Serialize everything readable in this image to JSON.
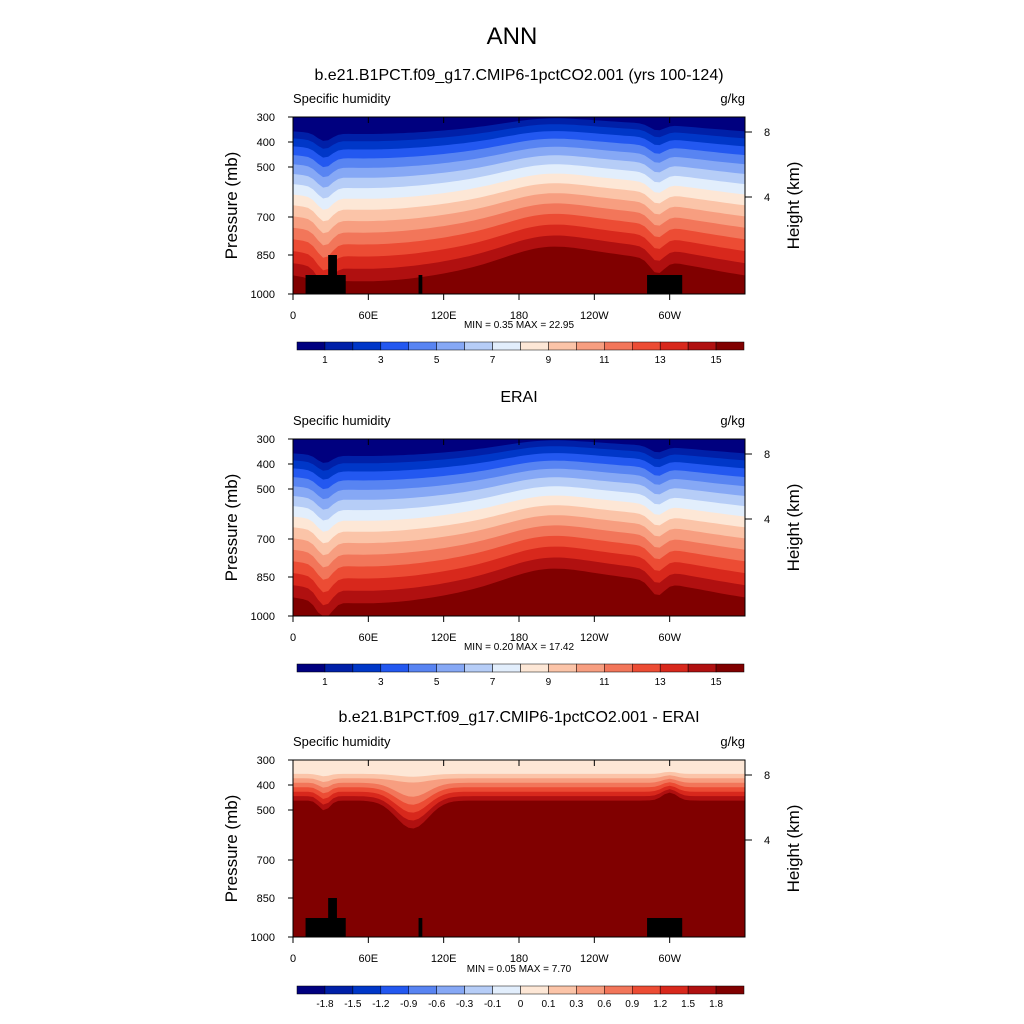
{
  "figure_title": "ANN",
  "colors": {
    "abs_scale": [
      "#00007f",
      "#0020a8",
      "#0037c8",
      "#2358f0",
      "#5884f2",
      "#86a8f5",
      "#b6cdf7",
      "#e2eefc",
      "#fde7d6",
      "#fbc4a8",
      "#f79e80",
      "#f2765a",
      "#ec4c34",
      "#d8281c",
      "#b01010",
      "#800000"
    ],
    "diff_scale": [
      "#00007f",
      "#0020a8",
      "#0037c8",
      "#2358f0",
      "#5884f2",
      "#86a8f5",
      "#b6cdf7",
      "#e2eefc",
      "#fde7d6",
      "#fbc4a8",
      "#f79e80",
      "#f2765a",
      "#ec4c34",
      "#d8281c",
      "#b01010",
      "#800000"
    ],
    "topography": "#000000"
  },
  "chart_data": [
    {
      "type": "heatmap",
      "title": "b.e21.B1PCT.f09_g17.CMIP6-1pctCO2.001 (yrs 100-124)",
      "left_label": "Specific humidity",
      "right_label": "g/kg",
      "ylabel": "Pressure (mb)",
      "y2label": "Height (km)",
      "y_ticks": [
        "300",
        "400",
        "500",
        "700",
        "850",
        "1000"
      ],
      "y2_ticks": [
        "8",
        "4"
      ],
      "x_ticks": [
        "0",
        "60E",
        "120E",
        "180",
        "120W",
        "60W"
      ],
      "xlim": [
        0,
        360
      ],
      "ylim": [
        1000,
        300
      ],
      "stats": "MIN =   0.35  MAX =  22.95",
      "colorbar_labels": [
        "1",
        "3",
        "5",
        "7",
        "9",
        "11",
        "13",
        "15"
      ],
      "surface_value": 22.95,
      "top_value": 0.35,
      "surface_humidity_profile": {
        "lon": [
          0,
          30,
          40,
          60,
          90,
          110,
          140,
          180,
          220,
          260,
          280,
          300,
          320,
          360
        ],
        "moist_layer_top_mb": [
          720,
          700,
          780,
          760,
          700,
          720,
          740,
          800,
          780,
          740,
          700,
          720,
          760,
          720
        ]
      },
      "topography": [
        {
          "lon_start": 10,
          "lon_end": 42,
          "top_mb": 920
        },
        {
          "lon_start": 28,
          "lon_end": 35,
          "top_mb": 860
        },
        {
          "lon_start": 100,
          "lon_end": 103,
          "top_mb": 920
        },
        {
          "lon_start": 282,
          "lon_end": 310,
          "top_mb": 920
        }
      ]
    },
    {
      "type": "heatmap",
      "title": "ERAI",
      "left_label": "Specific humidity",
      "right_label": "g/kg",
      "ylabel": "Pressure (mb)",
      "y2label": "Height (km)",
      "y_ticks": [
        "300",
        "400",
        "500",
        "700",
        "850",
        "1000"
      ],
      "y2_ticks": [
        "8",
        "4"
      ],
      "x_ticks": [
        "0",
        "60E",
        "120E",
        "180",
        "120W",
        "60W"
      ],
      "xlim": [
        0,
        360
      ],
      "ylim": [
        1000,
        300
      ],
      "stats": "MIN =   0.20  MAX =  17.42",
      "colorbar_labels": [
        "1",
        "3",
        "5",
        "7",
        "9",
        "11",
        "13",
        "15"
      ],
      "surface_value": 17.42,
      "top_value": 0.2,
      "topography": []
    },
    {
      "type": "heatmap",
      "title": "b.e21.B1PCT.f09_g17.CMIP6-1pctCO2.001 - ERAI",
      "left_label": "Specific humidity",
      "right_label": "g/kg",
      "ylabel": "Pressure (mb)",
      "y2label": "Height (km)",
      "y_ticks": [
        "300",
        "400",
        "500",
        "700",
        "850",
        "1000"
      ],
      "y2_ticks": [
        "8",
        "4"
      ],
      "x_ticks": [
        "0",
        "60E",
        "120E",
        "180",
        "120W",
        "60W"
      ],
      "xlim": [
        0,
        360
      ],
      "ylim": [
        1000,
        300
      ],
      "stats": "MIN =   0.05  MAX =   7.70",
      "colorbar_labels": [
        "-1.8",
        "-1.5",
        "-1.2",
        "-0.9",
        "-0.6",
        "-0.3",
        "-0.1",
        "0",
        "0.1",
        "0.3",
        "0.6",
        "0.9",
        "1.2",
        "1.5",
        "1.8"
      ],
      "surface_value": 7.7,
      "top_value": 0.05,
      "topography": [
        {
          "lon_start": 10,
          "lon_end": 42,
          "top_mb": 920
        },
        {
          "lon_start": 28,
          "lon_end": 35,
          "top_mb": 860
        },
        {
          "lon_start": 100,
          "lon_end": 103,
          "top_mb": 920
        },
        {
          "lon_start": 282,
          "lon_end": 310,
          "top_mb": 920
        }
      ]
    }
  ]
}
